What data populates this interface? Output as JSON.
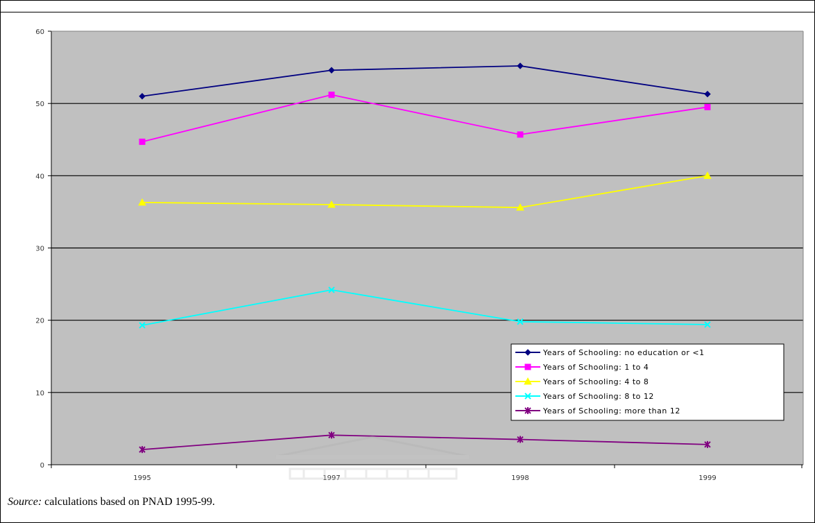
{
  "chart_data": {
    "type": "line",
    "categories": [
      "1995",
      "1997",
      "1998",
      "1999"
    ],
    "ylim": [
      0,
      60
    ],
    "yticks": [
      0,
      10,
      20,
      30,
      40,
      50,
      60
    ],
    "grid": true,
    "plot_background": "#c0c0c0",
    "legend_position": "bottom-right",
    "series": [
      {
        "name": "Years of Schooling: no education or <1",
        "values": [
          51.0,
          54.6,
          55.2,
          51.3
        ],
        "color": "#000080",
        "marker": "diamond"
      },
      {
        "name": "Years of Schooling: 1 to 4",
        "values": [
          44.7,
          51.2,
          45.7,
          49.5
        ],
        "color": "#ff00ff",
        "marker": "square"
      },
      {
        "name": "Years of Schooling: 4 to 8",
        "values": [
          36.3,
          36.0,
          35.6,
          40.0
        ],
        "color": "#ffff00",
        "marker": "triangle"
      },
      {
        "name": "Years of Schooling: 8 to 12",
        "values": [
          19.3,
          24.2,
          19.8,
          19.4
        ],
        "color": "#00ffff",
        "marker": "x"
      },
      {
        "name": "Years of Schooling: more than 12",
        "values": [
          2.1,
          4.1,
          3.5,
          2.8
        ],
        "color": "#800080",
        "marker": "star"
      }
    ]
  },
  "source": {
    "label": "Source:",
    "text": "calculations based on PNAD 1995-99."
  }
}
